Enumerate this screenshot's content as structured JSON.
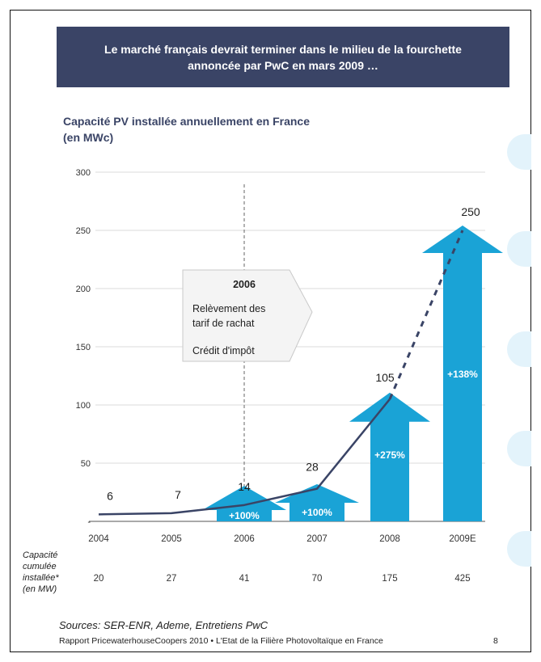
{
  "banner": {
    "line1": "Le marché français devrait terminer dans le milieu de la fourchette",
    "line2": "annoncée par PwC en mars 2009 …"
  },
  "chart_title": {
    "line1": "Capacité PV installée annuellement en France",
    "line2": "(en MWc)"
  },
  "colors": {
    "banner": "#3a4466",
    "line": "#3a4466",
    "arrow": "#1aa3d6",
    "grid": "#cfcfcf",
    "annotation_box": "#f4f4f4"
  },
  "annotation": {
    "year": "2006",
    "line1": "Relèvement des",
    "line2": "tarif de rachat",
    "line3": "Crédit d'impôt"
  },
  "cumulative": {
    "label_lines": [
      "Capacité",
      "cumulée",
      "installée*",
      "(en MW)"
    ]
  },
  "sources": "Sources: SER-ENR, Ademe, Entretiens PwC",
  "footer": "Rapport PricewaterhouseCoopers 2010 • L'Etat de la Filière Photovoltaïque en France",
  "page_number": "8",
  "chart_data": {
    "type": "line",
    "title": "Capacité PV installée annuellement en France (en MWc)",
    "categories": [
      "2004",
      "2005",
      "2006",
      "2007",
      "2008",
      "2009E"
    ],
    "values": [
      6,
      7,
      14,
      28,
      105,
      250
    ],
    "value_labels": [
      "6",
      "7",
      "14",
      "28",
      "105",
      "250"
    ],
    "estimated_from_index": 4,
    "yticks": [
      0,
      50,
      100,
      150,
      200,
      250,
      300
    ],
    "ytick_labels": [
      "-",
      "50",
      "100",
      "150",
      "200",
      "250",
      "300"
    ],
    "ylim": [
      0,
      300
    ],
    "grid": true,
    "growth_arrows": [
      {
        "category_index": 2,
        "label": "+100%",
        "value": 14
      },
      {
        "category_index": 3,
        "label": "+100%",
        "value": 28
      },
      {
        "category_index": 4,
        "label": "+275%",
        "value": 105
      },
      {
        "category_index": 5,
        "label": "+138%",
        "value": 250
      }
    ],
    "cumulative_capacity_mw": [
      "20",
      "27",
      "41",
      "70",
      "175",
      "425"
    ]
  }
}
